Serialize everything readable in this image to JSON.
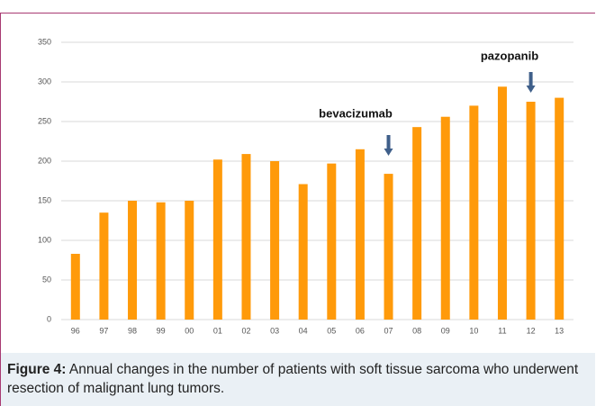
{
  "chart_data": {
    "type": "bar",
    "categories": [
      "96",
      "97",
      "98",
      "99",
      "00",
      "01",
      "02",
      "03",
      "04",
      "05",
      "06",
      "07",
      "08",
      "09",
      "10",
      "11",
      "12",
      "13"
    ],
    "values": [
      83,
      135,
      150,
      148,
      150,
      202,
      209,
      200,
      171,
      197,
      215,
      184,
      243,
      256,
      270,
      294,
      275,
      280
    ],
    "color": "#ff9a0a",
    "ylim": [
      0,
      350
    ],
    "yticks": [
      0,
      50,
      100,
      150,
      200,
      250,
      300,
      350
    ],
    "grid": true,
    "annotations": [
      "bevacizumab",
      "pazopanib"
    ]
  },
  "caption": {
    "label": "Figure 4:",
    "text": "Annual changes in the number of patients with soft tissue sarcoma who underwent resection of malignant lung tumors."
  }
}
